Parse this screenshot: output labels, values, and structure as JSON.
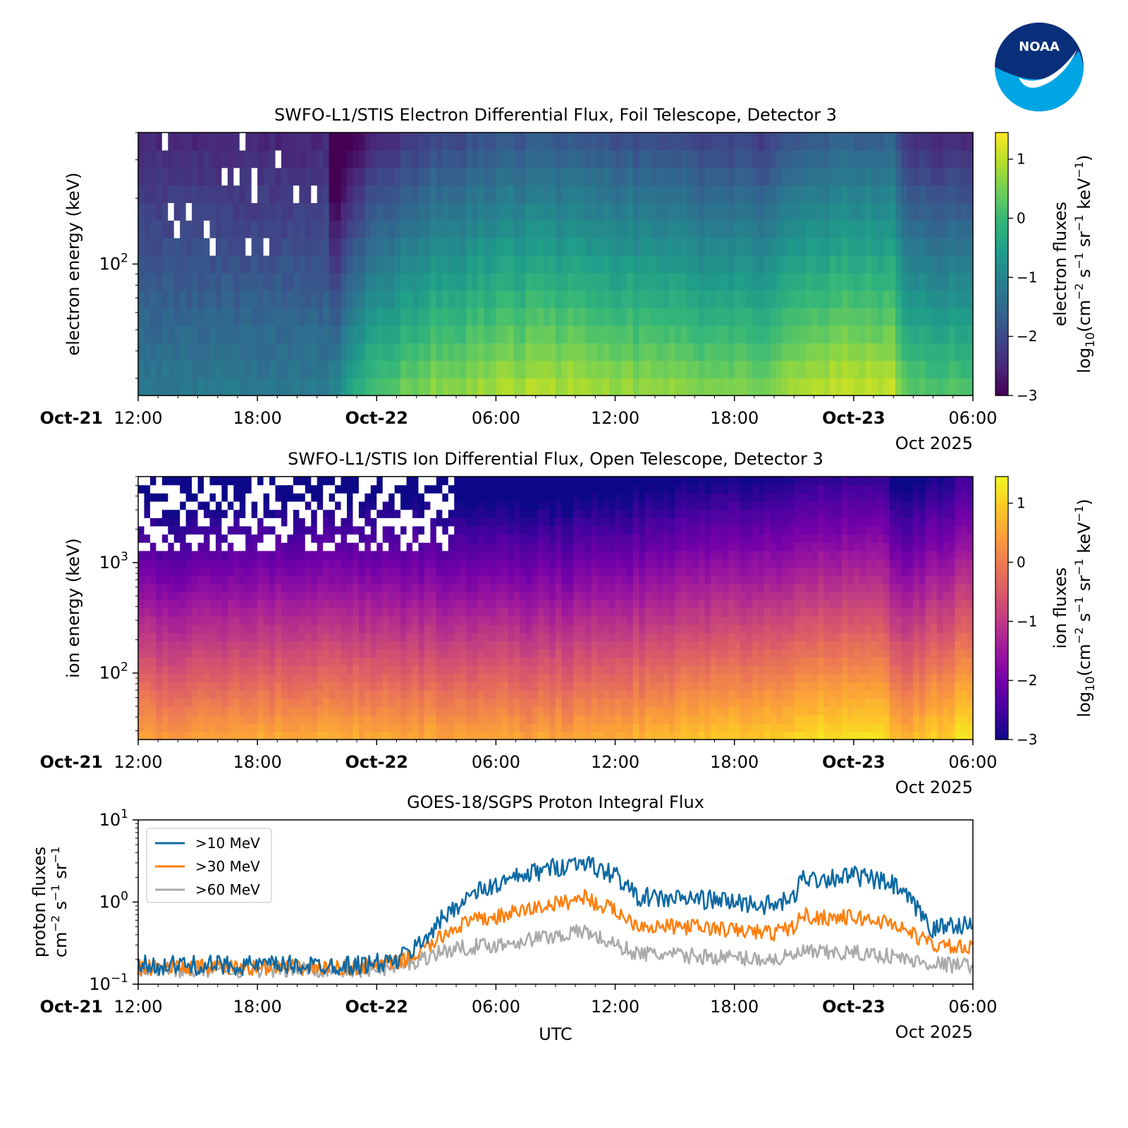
{
  "logo": {
    "text": "NOAA",
    "colors": {
      "dark": "#0a2f7a",
      "light": "#00a6e4"
    }
  },
  "time_axis": {
    "ticks": [
      {
        "h": 0,
        "label": "12:00",
        "prefix": "Oct-21"
      },
      {
        "h": 6,
        "label": "18:00"
      },
      {
        "h": 12,
        "label": "Oct-22",
        "bold": true
      },
      {
        "h": 18,
        "label": "06:00"
      },
      {
        "h": 24,
        "label": "12:00"
      },
      {
        "h": 30,
        "label": "18:00"
      },
      {
        "h": 36,
        "label": "Oct-23",
        "bold": true
      },
      {
        "h": 42,
        "label": "06:00"
      }
    ],
    "offset_label": "Oct 2025",
    "range_hours": [
      0,
      42
    ],
    "xlabel": "UTC"
  },
  "chart_data": [
    {
      "id": "electron",
      "type": "heatmap",
      "title": "SWFO-L1/STIS Electron Differential Flux, Foil Telescope, Detector 3",
      "ylabel": "electron energy (keV)",
      "yscale": "log",
      "ylim": [
        25,
        400
      ],
      "yticks": [
        {
          "value": 100,
          "base": "10",
          "exp": "2"
        }
      ],
      "colormap": "viridis",
      "colorbar": {
        "label": "electron fluxes",
        "unit_prefix": "log",
        "unit_sub": "10",
        "unit_body": "(cm",
        "range": [
          -3,
          1.45
        ],
        "ticks": [
          {
            "v": 1,
            "t": "1"
          },
          {
            "v": 0,
            "t": "0"
          },
          {
            "v": -1,
            "t": "−1"
          },
          {
            "v": -2,
            "t": "−2"
          },
          {
            "v": -3,
            "t": "−3"
          }
        ]
      },
      "energy_bins": 15,
      "profile_hours": [
        0,
        4,
        8,
        9.5,
        10.5,
        11,
        12,
        15,
        20,
        22,
        25,
        28,
        32,
        33,
        36,
        38,
        38.5,
        42
      ],
      "profile_level": [
        -1.2,
        -1.25,
        -1.3,
        -1.1,
        -0.6,
        -0.2,
        0.1,
        0.6,
        0.9,
        0.85,
        0.7,
        0.55,
        0.5,
        0.95,
        1.0,
        0.95,
        0.3,
        0.1
      ],
      "spectral_slope": 2.6
    },
    {
      "id": "ion",
      "type": "heatmap",
      "title": "SWFO-L1/STIS Ion Differential Flux, Open Telescope, Detector 3",
      "ylabel": "ion energy (keV)",
      "yscale": "log",
      "ylim": [
        25,
        6000
      ],
      "yticks": [
        {
          "value": 1000,
          "base": "10",
          "exp": "3"
        },
        {
          "value": 100,
          "base": "10",
          "exp": "2"
        }
      ],
      "colormap": "plasma",
      "colorbar": {
        "label": "ion fluxes",
        "unit_prefix": "log",
        "unit_sub": "10",
        "unit_body": "(cm",
        "range": [
          -3,
          1.45
        ],
        "ticks": [
          {
            "v": 1,
            "t": "1"
          },
          {
            "v": 0,
            "t": "0"
          },
          {
            "v": -1,
            "t": "−1"
          },
          {
            "v": -2,
            "t": "−2"
          },
          {
            "v": -3,
            "t": "−3"
          }
        ]
      },
      "energy_bins": 32,
      "profile_hours": [
        0,
        6,
        10,
        13,
        16,
        20,
        24,
        26,
        30,
        34,
        36,
        37.5,
        38.5,
        40,
        42
      ],
      "profile_level": [
        0.4,
        0.5,
        0.6,
        0.55,
        0.5,
        0.45,
        0.55,
        0.7,
        0.9,
        1.1,
        1.2,
        1.1,
        0.6,
        0.9,
        1.3
      ],
      "spectral_slope": 1.9
    },
    {
      "id": "proton",
      "type": "line",
      "title": "GOES-18/SGPS Proton Integral Flux",
      "ylabel_lines": [
        "proton fluxes",
        "cm"
      ],
      "yscale": "log",
      "ylim": [
        0.1,
        10
      ],
      "yticks": [
        {
          "value": 10,
          "base": "10",
          "exp": "1"
        },
        {
          "value": 1,
          "base": "10",
          "exp": "0"
        },
        {
          "value": 0.1,
          "base": "10",
          "exp": "−1"
        }
      ],
      "series": [
        {
          "name": ">10 MeV",
          "color": "#0f6aa3",
          "x": [
            0,
            4,
            8,
            11,
            13,
            14,
            15,
            16,
            17,
            18,
            20,
            22,
            22.5,
            23,
            24,
            24.5,
            25,
            26,
            28,
            30,
            32,
            33,
            33.5,
            34,
            36,
            38,
            39,
            40,
            41,
            42
          ],
          "y": [
            0.17,
            0.17,
            0.17,
            0.17,
            0.19,
            0.28,
            0.5,
            0.9,
            1.3,
            1.6,
            2.3,
            3.0,
            3.2,
            2.5,
            2.2,
            1.6,
            1.2,
            1.1,
            1.1,
            1.0,
            0.9,
            1.1,
            2.1,
            1.9,
            2.1,
            1.6,
            0.9,
            0.45,
            0.55,
            0.5
          ]
        },
        {
          "name": ">30 MeV",
          "color": "#ff7f0e",
          "x": [
            0,
            4,
            8,
            11,
            13,
            14,
            15,
            16,
            17,
            18,
            20,
            22,
            22.5,
            23,
            24,
            24.5,
            25,
            26,
            28,
            30,
            32,
            33,
            33.5,
            34,
            36,
            38,
            39,
            40,
            41,
            42
          ],
          "y": [
            0.16,
            0.16,
            0.16,
            0.16,
            0.18,
            0.23,
            0.33,
            0.5,
            0.6,
            0.65,
            0.85,
            1.05,
            1.2,
            0.95,
            0.8,
            0.65,
            0.55,
            0.5,
            0.5,
            0.45,
            0.42,
            0.5,
            0.7,
            0.65,
            0.65,
            0.55,
            0.4,
            0.3,
            0.28,
            0.27
          ]
        },
        {
          "name": ">60 MeV",
          "color": "#aaaaaa",
          "x": [
            0,
            4,
            8,
            11,
            13,
            14,
            15,
            16,
            17,
            18,
            20,
            22,
            22.5,
            23,
            24,
            24.5,
            25,
            26,
            28,
            30,
            32,
            33,
            33.5,
            34,
            36,
            38,
            39,
            40,
            41,
            42
          ],
          "y": [
            0.15,
            0.15,
            0.15,
            0.15,
            0.16,
            0.19,
            0.24,
            0.27,
            0.29,
            0.3,
            0.36,
            0.42,
            0.45,
            0.38,
            0.3,
            0.27,
            0.24,
            0.23,
            0.22,
            0.21,
            0.2,
            0.22,
            0.25,
            0.24,
            0.24,
            0.22,
            0.19,
            0.18,
            0.17,
            0.17
          ]
        }
      ],
      "legend_position": "upper-left"
    }
  ]
}
